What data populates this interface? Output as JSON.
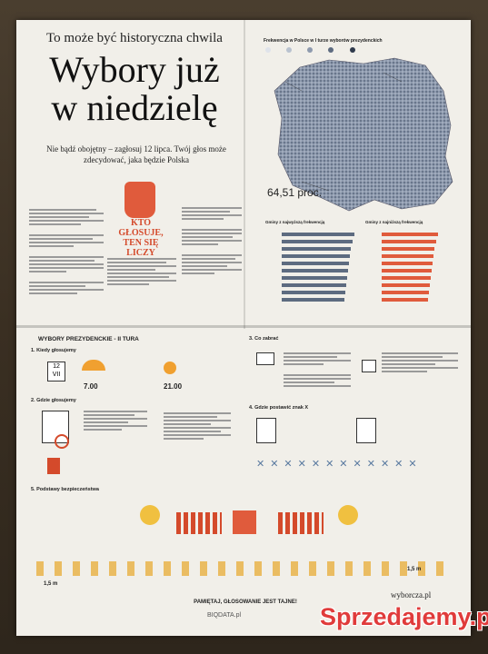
{
  "top_left": {
    "kicker": "To może być historyczna chwila",
    "headline_line1": "Wybory już",
    "headline_line2": "w niedzielę",
    "subhead": "Nie bądź obojętny – zagłosuj 12 lipca. Twój głos może zdecydować, jaka będzie Polska",
    "callout": "KTO GŁOSUJE, TEN SIĘ LICZY"
  },
  "top_right": {
    "map_title": "Frekwencja w Polsce w I turze wyborów prezydenckich",
    "turnout_big": "64,51 proc.",
    "chart_left_title": "Gminy z najwyższą frekwencją",
    "chart_right_title": "Gminy z najniższą frekwencją"
  },
  "lower": {
    "section_title": "WYBORY PREZYDENCKIE - II TURA",
    "step1": "1. Kiedy głosujemy",
    "date_day": "12",
    "date_month": "VII",
    "time_open": "7.00",
    "time_close": "21.00",
    "step2": "2. Gdzie głosujemy",
    "step3": "3. Co zabrać",
    "step4": "4. Gdzie postawić znak X",
    "step5": "5. Podstawy bezpieczeństwa",
    "distance_left": "1,5 m",
    "distance_right": "1,5 m",
    "footer": "PAMIĘTAJ, GŁOSOWANIE JEST TAJNE!",
    "brand_wyborcza": "wyborcza.pl",
    "brand_biqdata": "BIQDATA.pl"
  },
  "watermark": "Sprzedajemy.pl",
  "colors": {
    "accent": "#d44a2b",
    "map_dark": "#5d6b80",
    "map_light": "#b9c2cf",
    "paper": "#f1efe9"
  }
}
